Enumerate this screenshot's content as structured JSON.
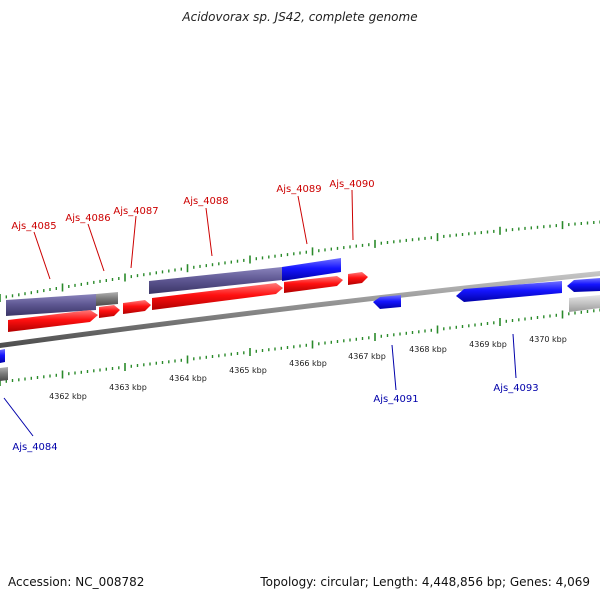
{
  "title": "Acidovorax sp. JS42, complete genome",
  "footer": {
    "accession": "Accession: NC_008782",
    "summary": "Topology: circular; Length: 4,448,856 bp; Genes: 4,069"
  },
  "colors": {
    "forward_gene": "#ff0000",
    "reverse_gene": "#0000ff",
    "forward_label": "#cc0000",
    "reverse_label": "#0000aa",
    "product_bar": "#5c5590",
    "pseudo_bar": "#7a7a7a",
    "backbone": "#8a8a8a",
    "tick": "#2a8a2a"
  },
  "scale": {
    "unit": "kbp",
    "labels": [
      "4362 kbp",
      "4363 kbp",
      "4364 kbp",
      "4365 kbp",
      "4366 kbp",
      "4367 kbp",
      "4368 kbp",
      "4369 kbp",
      "4370 kbp"
    ]
  },
  "genes_top": [
    "Ajs_4085",
    "Ajs_4086",
    "Ajs_4087",
    "Ajs_4088",
    "Ajs_4089",
    "Ajs_4090"
  ],
  "genes_bottom": [
    "Ajs_4084",
    "Ajs_4091",
    "Ajs_4093"
  ]
}
